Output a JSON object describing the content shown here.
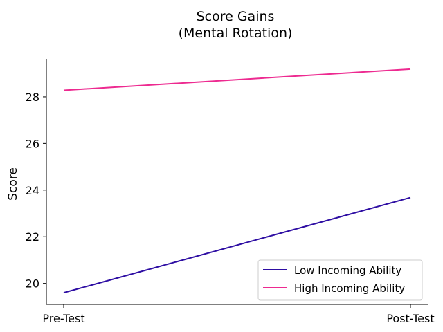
{
  "chart_data": {
    "type": "line",
    "title_lines": [
      "Score Gains",
      "(Mental Rotation)"
    ],
    "xlabel": "",
    "ylabel": "Score",
    "categories": [
      "Pre-Test",
      "Post-Test"
    ],
    "ylim": [
      19.1,
      29.6
    ],
    "yticks": [
      20,
      22,
      24,
      26,
      28
    ],
    "grid": false,
    "legend_position": "lower-right",
    "series": [
      {
        "name": "Low Incoming Ability",
        "color": "#2e0ea3",
        "values": [
          19.6,
          23.68
        ]
      },
      {
        "name": "High Incoming Ability",
        "color": "#ed2a90",
        "values": [
          28.28,
          29.19
        ]
      }
    ]
  }
}
